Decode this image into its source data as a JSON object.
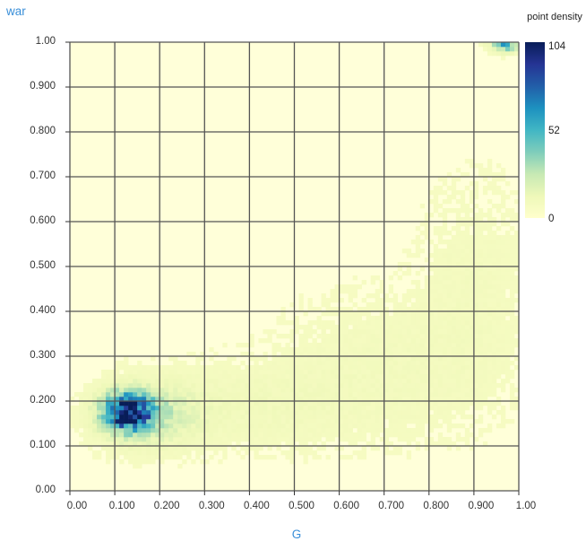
{
  "chart_data": {
    "type": "heatmap",
    "xlabel": "G",
    "ylabel": "war",
    "xlim": [
      0,
      1
    ],
    "ylim": [
      0,
      1
    ],
    "x_ticks": [
      "0.00",
      "0.100",
      "0.200",
      "0.300",
      "0.400",
      "0.500",
      "0.600",
      "0.700",
      "0.800",
      "0.900",
      "1.00"
    ],
    "y_ticks": [
      "0.00",
      "0.100",
      "0.200",
      "0.300",
      "0.400",
      "0.500",
      "0.600",
      "0.700",
      "0.800",
      "0.900",
      "1.00"
    ],
    "grid": true,
    "bins": 100,
    "legend": {
      "title": "point density",
      "min": 0,
      "max": 104,
      "labels": [
        "104",
        "52",
        "0"
      ],
      "placement": "right"
    },
    "colorscale": [
      "#ffffcc",
      "#eef8b9",
      "#c7e9b4",
      "#7fcdbb",
      "#41b6c4",
      "#1d91c0",
      "#225ea8",
      "#253494",
      "#081d58"
    ],
    "background_color": "#ffffd9",
    "grid_color": "#555555",
    "axis_title_color": "#3a8fd8",
    "clusters": [
      {
        "x": 0.13,
        "y": 0.175,
        "sx": 0.035,
        "sy": 0.027,
        "peak": 104
      },
      {
        "x": 0.18,
        "y": 0.17,
        "sx": 0.07,
        "sy": 0.045,
        "peak": 16
      },
      {
        "x": 0.4,
        "y": 0.19,
        "sx": 0.16,
        "sy": 0.06,
        "peak": 4
      },
      {
        "x": 0.7,
        "y": 0.28,
        "sx": 0.15,
        "sy": 0.1,
        "peak": 3
      },
      {
        "x": 0.9,
        "y": 0.45,
        "sx": 0.08,
        "sy": 0.16,
        "peak": 2.5
      },
      {
        "x": 0.97,
        "y": 0.995,
        "sx": 0.02,
        "sy": 0.01,
        "peak": 45
      }
    ]
  }
}
